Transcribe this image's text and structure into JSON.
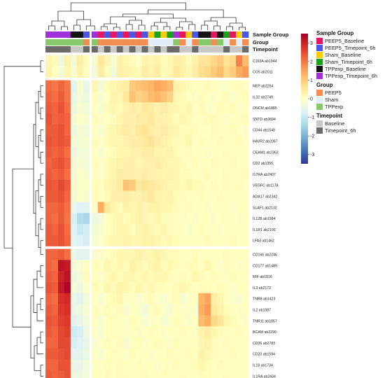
{
  "chart_data": {
    "type": "heatmap",
    "title": "",
    "xlabel": "",
    "ylabel": "",
    "columns": 32,
    "column_gap_after": [
      6
    ],
    "row_gap_after": [
      1,
      16
    ],
    "rows": [
      "C163A ab1944",
      "CO5 ab2011",
      "NEP ab2254",
      "IL32 ab2749",
      "ONCM ab1885",
      "SNTD ab3694",
      "CD44 ab1540",
      "HAVR2 ab2067",
      "CEAM1 ab2363",
      "CD2 ab1356",
      "I17RA ab2407",
      "VEGFC ab1178",
      "ADA17 ab2342",
      "SLAF1 ab2132",
      "IL12B ab1984",
      "IL1R1 ab2100",
      "LFA3 ab1462",
      "CD166 ab2246",
      "CD177 ab1489",
      "MIF ab1816",
      "IL3 ab2172",
      "TNR8 ab1423",
      "IL2 ab1587",
      "TNR11 ab1857",
      "BCAM ab2290",
      "CD36 ab2783",
      "CD20 ab1594",
      "IL18 ab1734",
      "IL1RA ab2434"
    ],
    "values": [
      [
        0.2,
        0.1,
        -0.4,
        0.3,
        -0.3,
        0.4,
        0.1,
        -0.2,
        0.5,
        0.2,
        -0.2,
        0.3,
        0.2,
        0.1,
        -0.1,
        0.3,
        0.2,
        0.3,
        0.1,
        0.2,
        0.4,
        0.3,
        0.1,
        0.3,
        0.6,
        0.6,
        0.8,
        1.0,
        0.6,
        0.8,
        1.9,
        1.2
      ],
      [
        0.3,
        0.0,
        -0.3,
        0.2,
        -0.2,
        0.3,
        0.0,
        -0.3,
        0.4,
        0.1,
        -0.3,
        0.3,
        0.3,
        0.2,
        0.1,
        0.4,
        0.3,
        0.4,
        0.1,
        0.2,
        0.5,
        0.3,
        0.2,
        0.4,
        0.7,
        0.8,
        1.0,
        1.2,
        0.8,
        1.0,
        1.4,
        1.6
      ],
      [
        2.1,
        2.0,
        2.2,
        2.0,
        -0.6,
        -0.2,
        -0.5,
        0.2,
        -0.3,
        0.1,
        0.2,
        0.3,
        0.4,
        1.0,
        1.1,
        1.2,
        1.3,
        1.5,
        1.4,
        1.2,
        0.3,
        0.2,
        0.1,
        0.0,
        0.0,
        0.1,
        0.0,
        -0.1,
        -0.1,
        0.0,
        0.1,
        0.0
      ],
      [
        2.2,
        2.1,
        2.3,
        2.0,
        -0.5,
        -0.3,
        -0.4,
        0.1,
        -0.2,
        0.0,
        0.3,
        0.2,
        0.5,
        1.1,
        0.9,
        1.0,
        1.2,
        1.3,
        1.1,
        0.9,
        0.2,
        0.1,
        0.0,
        -0.1,
        0.1,
        0.0,
        -0.1,
        0.0,
        0.1,
        -0.1,
        0.0,
        0.1
      ],
      [
        2.3,
        2.2,
        2.4,
        2.1,
        -0.4,
        -0.2,
        -0.3,
        0.0,
        -0.2,
        0.1,
        0.2,
        0.1,
        0.3,
        0.4,
        0.3,
        0.5,
        0.4,
        0.3,
        0.4,
        0.3,
        0.2,
        0.1,
        0.2,
        0.0,
        0.1,
        -0.1,
        0.0,
        0.1,
        0.0,
        0.1,
        -0.1,
        0.0
      ],
      [
        2.4,
        2.2,
        2.3,
        2.2,
        -0.3,
        -0.1,
        -0.2,
        0.1,
        -0.1,
        0.0,
        0.1,
        0.2,
        0.3,
        0.3,
        0.4,
        0.4,
        0.5,
        0.3,
        0.3,
        0.2,
        0.1,
        0.2,
        0.1,
        0.0,
        0.0,
        0.1,
        0.1,
        0.0,
        -0.1,
        0.0,
        0.0,
        0.1
      ],
      [
        2.3,
        2.3,
        2.4,
        2.2,
        -0.4,
        -0.2,
        -0.3,
        0.0,
        -0.2,
        0.1,
        0.2,
        0.3,
        0.4,
        0.3,
        0.5,
        0.6,
        0.4,
        0.3,
        0.4,
        0.3,
        0.2,
        0.1,
        0.1,
        0.1,
        0.0,
        0.0,
        0.1,
        0.0,
        0.0,
        0.1,
        0.0,
        -0.1
      ],
      [
        2.4,
        2.3,
        2.4,
        2.3,
        -0.3,
        -0.2,
        -0.2,
        0.1,
        -0.1,
        0.1,
        0.2,
        0.2,
        0.3,
        0.4,
        0.4,
        0.5,
        0.6,
        0.4,
        0.3,
        0.2,
        0.1,
        0.1,
        0.2,
        0.0,
        0.1,
        0.0,
        0.0,
        0.1,
        0.0,
        0.0,
        0.1,
        0.0
      ],
      [
        2.3,
        2.2,
        2.3,
        2.1,
        -0.4,
        -0.3,
        -0.3,
        0.0,
        -0.2,
        0.0,
        0.1,
        0.2,
        0.2,
        0.3,
        0.3,
        0.4,
        0.4,
        0.3,
        0.2,
        0.3,
        0.1,
        0.0,
        0.1,
        0.0,
        0.0,
        -0.1,
        0.0,
        0.0,
        0.1,
        0.0,
        0.0,
        0.0
      ],
      [
        2.2,
        2.3,
        2.4,
        2.2,
        -0.3,
        -0.2,
        -0.3,
        0.1,
        -0.1,
        0.1,
        0.2,
        0.3,
        0.3,
        0.3,
        0.2,
        0.3,
        0.3,
        0.4,
        0.3,
        0.2,
        0.2,
        0.1,
        0.0,
        0.1,
        0.0,
        0.0,
        0.1,
        0.0,
        0.0,
        0.1,
        0.0,
        0.0
      ],
      [
        2.3,
        2.2,
        2.3,
        2.1,
        -0.3,
        -0.1,
        -0.2,
        0.0,
        -0.1,
        0.1,
        0.2,
        0.4,
        0.3,
        0.3,
        0.3,
        0.4,
        0.3,
        0.3,
        0.2,
        0.3,
        0.2,
        0.1,
        0.1,
        0.0,
        0.0,
        0.1,
        0.0,
        0.0,
        0.1,
        0.0,
        0.0,
        0.1
      ],
      [
        2.4,
        2.3,
        2.5,
        2.3,
        -0.2,
        -0.1,
        -0.1,
        0.1,
        0.0,
        0.2,
        0.3,
        0.4,
        1.1,
        1.0,
        0.5,
        0.6,
        0.5,
        0.4,
        0.3,
        0.2,
        0.2,
        0.1,
        0.2,
        0.1,
        0.1,
        0.0,
        0.1,
        0.0,
        0.1,
        0.0,
        0.1,
        0.0
      ],
      [
        2.3,
        2.3,
        2.4,
        2.2,
        -0.3,
        -0.1,
        -0.2,
        0.1,
        0.0,
        0.1,
        0.3,
        0.3,
        0.4,
        0.3,
        0.3,
        0.4,
        0.5,
        0.3,
        0.2,
        0.3,
        0.1,
        0.1,
        0.0,
        0.0,
        0.1,
        0.0,
        0.0,
        0.1,
        0.0,
        0.0,
        0.0,
        0.0
      ],
      [
        2.2,
        2.2,
        2.3,
        2.1,
        -0.5,
        -0.7,
        -0.6,
        -0.1,
        1.4,
        0.5,
        0.2,
        0.1,
        0.3,
        0.2,
        0.3,
        0.2,
        0.3,
        0.3,
        0.2,
        0.2,
        0.1,
        0.0,
        0.1,
        0.0,
        0.0,
        -0.1,
        0.0,
        0.0,
        0.0,
        -0.1,
        0.0,
        0.0
      ],
      [
        2.2,
        2.1,
        2.3,
        2.0,
        -0.8,
        -1.3,
        -1.4,
        -0.4,
        -0.3,
        0.0,
        0.1,
        0.2,
        0.1,
        0.2,
        0.3,
        0.2,
        0.1,
        0.2,
        0.1,
        0.1,
        0.0,
        -0.1,
        0.0,
        -0.1,
        0.0,
        0.0,
        -0.1,
        0.0,
        0.0,
        0.0,
        -0.1,
        0.0
      ],
      [
        2.3,
        2.2,
        2.4,
        2.1,
        -0.7,
        -1.0,
        -0.9,
        -0.3,
        -0.2,
        0.0,
        0.1,
        0.2,
        0.2,
        0.1,
        0.2,
        0.3,
        0.2,
        0.1,
        0.2,
        0.1,
        0.0,
        0.0,
        -0.1,
        0.0,
        0.1,
        0.0,
        0.0,
        -0.1,
        0.0,
        0.0,
        0.0,
        0.0
      ],
      [
        2.3,
        2.3,
        2.4,
        2.2,
        -0.6,
        -0.7,
        -0.8,
        -0.2,
        -0.1,
        0.1,
        0.2,
        0.2,
        0.3,
        0.2,
        0.2,
        0.3,
        0.3,
        0.2,
        0.1,
        0.2,
        0.1,
        0.0,
        0.0,
        0.0,
        0.0,
        0.1,
        0.0,
        0.0,
        0.0,
        0.1,
        0.0,
        0.0
      ],
      [
        2.2,
        2.2,
        2.3,
        2.1,
        -0.5,
        -0.6,
        -0.6,
        -0.2,
        -0.1,
        0.0,
        0.1,
        0.2,
        0.2,
        0.2,
        0.3,
        0.2,
        0.2,
        0.3,
        0.2,
        0.1,
        0.1,
        0.0,
        0.0,
        0.1,
        0.0,
        0.0,
        0.0,
        0.0,
        0.1,
        0.0,
        0.0,
        0.0
      ],
      [
        2.2,
        2.1,
        3.2,
        3.1,
        -0.3,
        -0.2,
        0.0,
        0.1,
        0.0,
        0.2,
        0.1,
        0.2,
        0.1,
        0.3,
        0.2,
        0.1,
        0.2,
        0.3,
        0.1,
        0.2,
        0.1,
        0.0,
        0.1,
        0.1,
        0.0,
        0.2,
        0.0,
        -0.1,
        0.1,
        0.0,
        -0.1,
        0.0
      ],
      [
        2.3,
        2.2,
        3.0,
        3.2,
        -0.4,
        -0.3,
        0.1,
        0.0,
        -0.1,
        0.1,
        0.2,
        0.1,
        0.2,
        0.2,
        0.1,
        0.2,
        0.1,
        0.2,
        0.2,
        0.1,
        0.0,
        0.1,
        0.0,
        0.2,
        0.1,
        0.0,
        0.1,
        0.0,
        -0.1,
        0.1,
        0.0,
        0.0
      ],
      [
        2.4,
        2.3,
        3.1,
        3.4,
        -0.3,
        -0.4,
        -0.1,
        0.1,
        0.0,
        0.2,
        0.1,
        0.3,
        0.2,
        0.1,
        0.2,
        0.1,
        0.2,
        0.1,
        0.1,
        0.0,
        0.1,
        0.2,
        0.1,
        0.0,
        0.1,
        0.1,
        0.0,
        0.1,
        0.0,
        -0.1,
        0.0,
        0.0
      ],
      [
        2.2,
        2.1,
        2.8,
        2.9,
        -0.5,
        -0.6,
        -0.3,
        0.0,
        -0.2,
        0.0,
        0.1,
        0.2,
        -0.1,
        0.0,
        -0.2,
        0.0,
        0.1,
        -0.1,
        -0.2,
        0.0,
        0.1,
        -0.2,
        -0.1,
        0.0,
        1.3,
        1.5,
        0.4,
        0.2,
        0.0,
        -0.1,
        -0.2,
        0.0
      ],
      [
        2.3,
        2.2,
        2.7,
        2.8,
        -0.5,
        -0.4,
        -0.2,
        0.1,
        -0.1,
        0.1,
        0.0,
        0.1,
        -0.2,
        0.0,
        -0.1,
        -0.3,
        0.0,
        0.1,
        -0.1,
        -0.2,
        0.0,
        -0.1,
        0.0,
        -0.2,
        1.4,
        1.6,
        0.5,
        0.3,
        0.1,
        0.0,
        -0.1,
        0.0
      ],
      [
        2.4,
        2.3,
        2.6,
        2.7,
        -0.6,
        -0.5,
        -0.3,
        0.0,
        -0.2,
        0.0,
        0.1,
        0.0,
        -0.1,
        0.1,
        0.0,
        -0.2,
        -0.1,
        0.0,
        -0.2,
        -0.1,
        0.1,
        0.0,
        -0.1,
        0.0,
        1.2,
        1.4,
        0.8,
        0.6,
        0.2,
        0.1,
        0.0,
        -0.1
      ],
      [
        2.3,
        2.2,
        2.5,
        2.6,
        -0.9,
        -0.8,
        -0.4,
        -0.1,
        -0.2,
        0.0,
        0.1,
        0.0,
        -0.1,
        0.0,
        -0.1,
        0.0,
        0.1,
        0.0,
        -0.1,
        0.0,
        0.0,
        0.1,
        0.0,
        -0.1,
        0.3,
        0.4,
        0.2,
        0.1,
        0.0,
        0.0,
        0.1,
        0.0
      ],
      [
        2.2,
        2.2,
        2.5,
        2.5,
        -0.8,
        -0.7,
        -0.5,
        -0.2,
        -0.1,
        0.1,
        0.0,
        0.1,
        -0.2,
        0.0,
        0.1,
        -0.1,
        0.0,
        0.1,
        0.0,
        -0.1,
        0.1,
        0.0,
        0.0,
        0.0,
        0.2,
        0.3,
        0.1,
        0.0,
        0.1,
        0.0,
        0.0,
        0.0
      ],
      [
        2.3,
        2.3,
        2.4,
        2.5,
        -0.6,
        -0.6,
        -0.4,
        -0.1,
        -0.2,
        0.0,
        0.1,
        0.0,
        -0.1,
        0.1,
        0.0,
        0.0,
        -0.1,
        0.0,
        0.0,
        0.1,
        0.0,
        0.0,
        0.1,
        0.0,
        0.3,
        0.2,
        0.1,
        0.0,
        0.0,
        0.1,
        0.0,
        0.0
      ],
      [
        2.2,
        2.2,
        2.4,
        2.4,
        -0.5,
        -0.5,
        -0.3,
        0.0,
        -0.1,
        0.1,
        0.0,
        0.1,
        0.0,
        0.0,
        0.1,
        0.0,
        0.0,
        -0.1,
        0.0,
        0.0,
        0.1,
        0.0,
        0.0,
        0.1,
        0.2,
        0.1,
        0.0,
        0.1,
        0.0,
        0.0,
        0.0,
        0.0
      ],
      [
        2.3,
        2.2,
        2.3,
        2.4,
        -0.4,
        -0.4,
        -0.3,
        0.0,
        0.0,
        0.1,
        0.0,
        0.1,
        0.1,
        0.0,
        0.0,
        0.1,
        0.0,
        0.0,
        0.1,
        0.0,
        0.0,
        0.1,
        0.0,
        0.0,
        0.1,
        0.1,
        0.0,
        0.0,
        0.1,
        0.0,
        0.0,
        0.0
      ]
    ],
    "annotation_tracks": [
      {
        "name": "Sample Group",
        "values": [
          "TPPexp_Timepoint_6h",
          "TPPexp_Timepoint_6h",
          "TPPexp_Timepoint_6h",
          "TPPexp_Timepoint_6h",
          "TPPexp_Baseline",
          "TPPexp_Baseline",
          "PEEP5_Timepoint_6h",
          "TPPexp_Timepoint_6h",
          "PEEP5_Baseline",
          "PEEP5_Timepoint_6h",
          "PEEP5_Baseline",
          "PEEP5_Timepoint_6h",
          "PEEP5_Baseline",
          "PEEP5_Timepoint_6h",
          "PEEP5_Baseline",
          "PEEP5_Timepoint_6h",
          "Sham_Baseline",
          "Sham_Timepoint_6h",
          "Sham_Baseline",
          "Sham_Timepoint_6h",
          "TPPexp_Timepoint_6h",
          "PEEP5_Baseline",
          "Sham_Baseline",
          "PEEP5_Timepoint_6h",
          "TPPexp_Baseline",
          "TPPexp_Baseline",
          "PEEP5_Baseline",
          "TPPexp_Baseline",
          "Sham_Timepoint_6h",
          "PEEP5_Baseline",
          "Sham_Baseline",
          "PEEP5_Timepoint_6h"
        ]
      },
      {
        "name": "Group",
        "values": [
          "TPPexp",
          "TPPexp",
          "TPPexp",
          "TPPexp",
          "TPPexp",
          "TPPexp",
          "PEEP5",
          "TPPexp",
          "PEEP5",
          "PEEP5",
          "PEEP5",
          "PEEP5",
          "PEEP5",
          "PEEP5",
          "PEEP5",
          "PEEP5",
          "Sham",
          "Sham",
          "Sham",
          "Sham",
          "TPPexp",
          "PEEP5",
          "Sham",
          "PEEP5",
          "TPPexp",
          "TPPexp",
          "PEEP5",
          "TPPexp",
          "Sham",
          "PEEP5",
          "Sham",
          "PEEP5"
        ]
      },
      {
        "name": "Timepoint",
        "values": [
          "Timepoint_6h",
          "Timepoint_6h",
          "Timepoint_6h",
          "Timepoint_6h",
          "Baseline",
          "Baseline",
          "Timepoint_6h",
          "Timepoint_6h",
          "Baseline",
          "Timepoint_6h",
          "Baseline",
          "Timepoint_6h",
          "Baseline",
          "Timepoint_6h",
          "Baseline",
          "Timepoint_6h",
          "Baseline",
          "Timepoint_6h",
          "Baseline",
          "Timepoint_6h",
          "Timepoint_6h",
          "Baseline",
          "Baseline",
          "Timepoint_6h",
          "Baseline",
          "Baseline",
          "Baseline",
          "Baseline",
          "Timepoint_6h",
          "Baseline",
          "Baseline",
          "Timepoint_6h"
        ]
      }
    ],
    "colorbar": {
      "ticks": [
        3,
        2,
        1,
        0,
        -1,
        -2,
        -3
      ],
      "range": [
        -3.5,
        3.5
      ],
      "colors": [
        "#313695",
        "#4575b4",
        "#74add1",
        "#abd9e9",
        "#e0f3f8",
        "#ffffbf",
        "#fee090",
        "#fdae61",
        "#f46d43",
        "#d73027",
        "#a50026"
      ]
    },
    "legends": [
      {
        "title": "Sample Group",
        "entries": [
          {
            "label": "PEEP5_Baseline",
            "color": "#e8175d"
          },
          {
            "label": "PEEP5_Timepoint_6h",
            "color": "#4b57e8"
          },
          {
            "label": "Sham_Baseline",
            "color": "#ffcc00"
          },
          {
            "label": "Sham_Timepoint_6h",
            "color": "#1aa31a"
          },
          {
            "label": "TPPexp_Baseline",
            "color": "#141414"
          },
          {
            "label": "TPPexp_Timepoint_6h",
            "color": "#a030d8"
          }
        ]
      },
      {
        "title": "Group",
        "entries": [
          {
            "label": "PEEP5",
            "color": "#f28e52"
          },
          {
            "label": "Sham",
            "color": "#e2eef7"
          },
          {
            "label": "TPPexp",
            "color": "#86c86a"
          }
        ]
      },
      {
        "title": "Timepoint",
        "entries": [
          {
            "label": "Baseline",
            "color": "#c8c8c8"
          },
          {
            "label": "Timepoint_6h",
            "color": "#6a6a6a"
          }
        ]
      }
    ],
    "grid": false
  }
}
